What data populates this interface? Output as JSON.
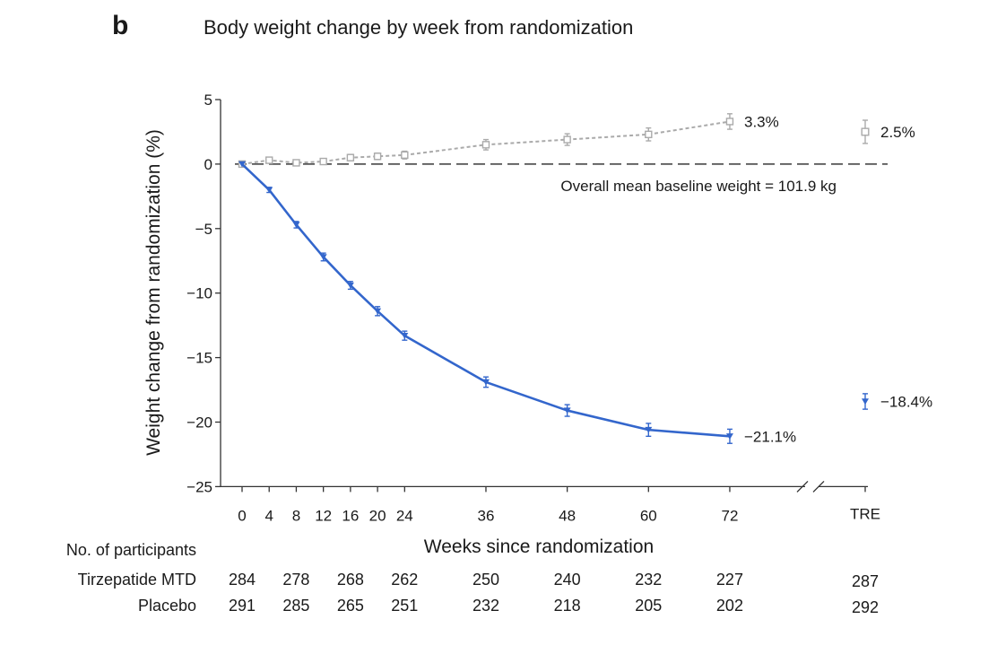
{
  "panel_label": "b",
  "chart_data": {
    "type": "line",
    "title": "Body weight change by week from randomization",
    "xlabel": "Weeks since randomization",
    "ylabel": "Weight change from randomization (%)",
    "ylim": [
      -25,
      5
    ],
    "yticks": [
      5,
      0,
      -5,
      -10,
      -15,
      -20,
      -25
    ],
    "x": [
      0,
      4,
      8,
      12,
      16,
      20,
      24,
      36,
      48,
      60,
      72
    ],
    "x_tick_labels": [
      "0",
      "4",
      "8",
      "12",
      "16",
      "20",
      "24",
      "36",
      "48",
      "60",
      "72"
    ],
    "extra_tick_label": "TRE",
    "baseline_annotation": "Overall mean baseline weight = 101.9 kg",
    "grid": false,
    "series": [
      {
        "name": "Tirzepatide MTD",
        "color": "#3366cc",
        "marker": "triangle-down",
        "values": [
          0,
          -2.0,
          -4.7,
          -7.2,
          -9.4,
          -11.4,
          -13.3,
          -16.9,
          -19.1,
          -20.6,
          -21.1
        ],
        "err": [
          0,
          0.2,
          0.25,
          0.3,
          0.3,
          0.35,
          0.35,
          0.4,
          0.45,
          0.5,
          0.55
        ],
        "end_label": "−21.1%",
        "tre_value": -18.4,
        "tre_err": 0.6,
        "tre_label": "−18.4%"
      },
      {
        "name": "Placebo",
        "color": "#aaaaaa",
        "marker": "open-square",
        "values": [
          0,
          0.3,
          0.1,
          0.2,
          0.5,
          0.6,
          0.7,
          1.5,
          1.9,
          2.3,
          3.3
        ],
        "err": [
          0,
          0.15,
          0.15,
          0.2,
          0.25,
          0.25,
          0.3,
          0.4,
          0.45,
          0.5,
          0.6
        ],
        "end_label": "3.3%",
        "tre_value": 2.5,
        "tre_err": 0.9,
        "tre_label": "2.5%"
      }
    ]
  },
  "participants_table": {
    "heading": "No. of participants",
    "rows": [
      {
        "label": "Tirzepatide MTD",
        "counts": [
          "284",
          "278",
          "268",
          "262",
          "250",
          "240",
          "232",
          "227"
        ],
        "tre": "287"
      },
      {
        "label": "Placebo",
        "counts": [
          "291",
          "285",
          "265",
          "251",
          "232",
          "218",
          "205",
          "202"
        ],
        "tre": "292"
      }
    ]
  }
}
